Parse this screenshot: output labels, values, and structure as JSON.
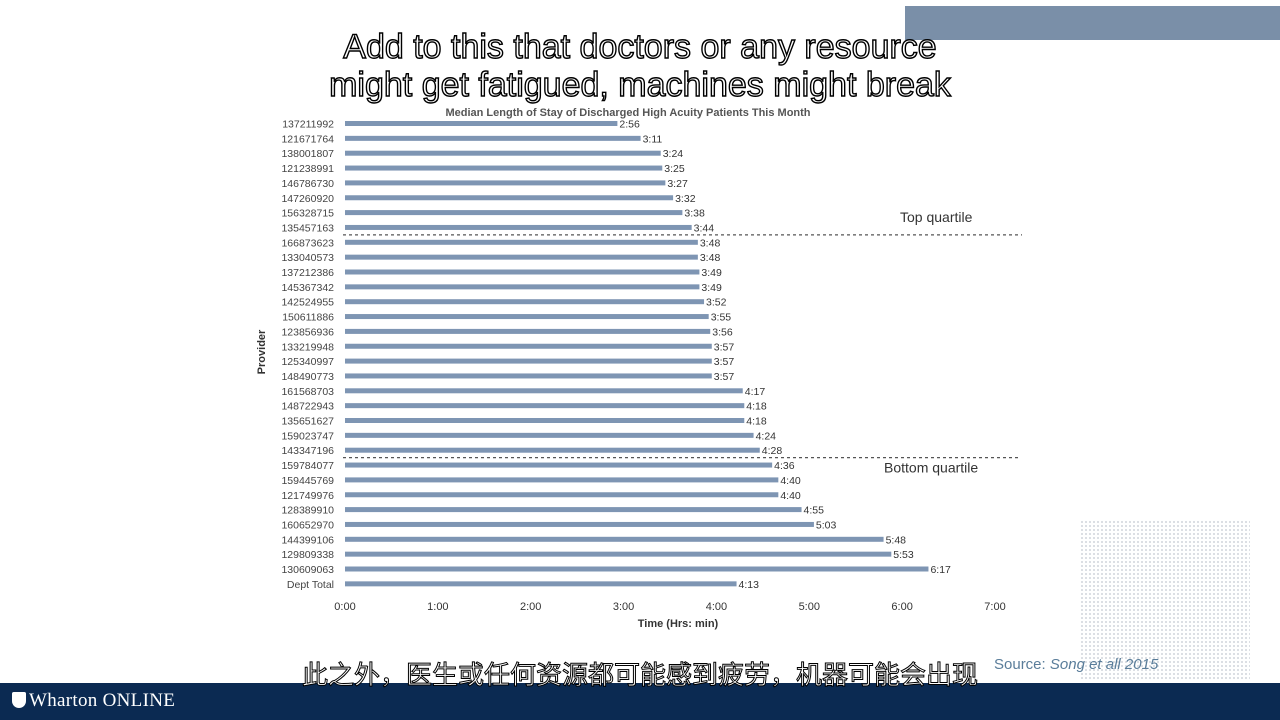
{
  "slide": {
    "accent_color": "#7a8fa8",
    "caption_en": [
      "Add to this that doctors or any resource",
      "might get fatigued, machines might break"
    ],
    "caption_zh": "此之外，医生或任何资源都可能感到疲劳，机器可能会出现",
    "source_prefix": "Source: ",
    "source_citation": "Song et all 2015",
    "footer_brand": "Wharton ONLINE",
    "footer_color": "#0b2a52"
  },
  "chart_data": {
    "type": "bar",
    "orientation": "horizontal",
    "title": "Median Length of Stay of Discharged High Acuity Patients This Month",
    "xlabel": "Time (Hrs: min)",
    "ylabel": "Provider",
    "xlim_minutes": [
      0,
      420
    ],
    "x_ticks": [
      "0:00",
      "1:00",
      "2:00",
      "3:00",
      "4:00",
      "5:00",
      "6:00",
      "7:00"
    ],
    "bar_color": "#7e95b3",
    "categories": [
      "137211992",
      "121671764",
      "138001807",
      "121238991",
      "146786730",
      "147260920",
      "156328715",
      "135457163",
      "166873623",
      "133040573",
      "137212386",
      "145367342",
      "142524955",
      "150611886",
      "123856936",
      "133219948",
      "125340997",
      "148490773",
      "161568703",
      "148722943",
      "135651627",
      "159023747",
      "143347196",
      "159784077",
      "159445769",
      "121749976",
      "128389910",
      "160652970",
      "144399106",
      "129809338",
      "130609063",
      "Dept Total"
    ],
    "labels": [
      "2:56",
      "3:11",
      "3:24",
      "3:25",
      "3:27",
      "3:32",
      "3:38",
      "3:44",
      "3:48",
      "3:48",
      "3:49",
      "3:49",
      "3:52",
      "3:55",
      "3:56",
      "3:57",
      "3:57",
      "3:57",
      "4:17",
      "4:18",
      "4:18",
      "4:24",
      "4:28",
      "4:36",
      "4:40",
      "4:40",
      "4:55",
      "5:03",
      "5:48",
      "5:53",
      "6:17",
      "4:13"
    ],
    "values_minutes": [
      176,
      191,
      204,
      205,
      207,
      212,
      218,
      224,
      228,
      228,
      229,
      229,
      232,
      235,
      236,
      237,
      237,
      237,
      257,
      258,
      258,
      264,
      268,
      276,
      280,
      280,
      295,
      303,
      348,
      353,
      377,
      253
    ],
    "annotations": [
      {
        "text": "Top quartile",
        "after_category": "135457163"
      },
      {
        "text": "Bottom quartile",
        "after_category": "143347196"
      }
    ],
    "grid": false,
    "legend": "none"
  }
}
